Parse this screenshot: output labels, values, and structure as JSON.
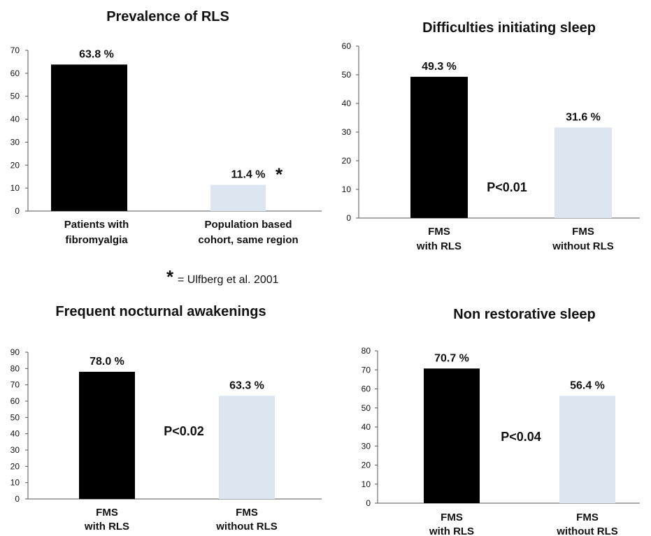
{
  "chart_data": [
    {
      "type": "bar",
      "title": "Prevalence of RLS",
      "categories": [
        [
          "Patients with",
          "fibromyalgia"
        ],
        [
          "Population based",
          "cohort, same region"
        ]
      ],
      "values": [
        63.8,
        11.4
      ],
      "value_labels": [
        "63.8 %",
        "11.4 %"
      ],
      "value_marks": [
        "",
        "*"
      ],
      "colors": [
        "#000000",
        "#dce6f1"
      ],
      "ylim": [
        0,
        70
      ],
      "yticks": [
        0,
        10,
        20,
        30,
        40,
        50,
        60,
        70
      ],
      "annotation": "",
      "grid": false
    },
    {
      "type": "bar",
      "title": "Difficulties initiating sleep",
      "categories": [
        [
          "FMS",
          "with RLS"
        ],
        [
          "FMS",
          "without RLS"
        ]
      ],
      "values": [
        49.3,
        31.6
      ],
      "value_labels": [
        "49.3 %",
        "31.6 %"
      ],
      "value_marks": [
        "",
        ""
      ],
      "colors": [
        "#000000",
        "#dce6f1"
      ],
      "ylim": [
        0,
        60
      ],
      "yticks": [
        0,
        10,
        20,
        30,
        40,
        50,
        60
      ],
      "annotation": "P<0.01",
      "grid": false
    },
    {
      "type": "bar",
      "title": "Frequent nocturnal awakenings",
      "categories": [
        [
          "FMS",
          "with RLS"
        ],
        [
          "FMS",
          "without RLS"
        ]
      ],
      "values": [
        78.0,
        63.3
      ],
      "value_labels": [
        "78.0 %",
        "63.3 %"
      ],
      "value_marks": [
        "",
        ""
      ],
      "colors": [
        "#000000",
        "#dce6f1"
      ],
      "ylim": [
        0,
        90
      ],
      "yticks": [
        0,
        10,
        20,
        30,
        40,
        50,
        60,
        70,
        80,
        90
      ],
      "annotation": "P<0.02",
      "grid": false
    },
    {
      "type": "bar",
      "title": "Non restorative sleep",
      "categories": [
        [
          "FMS",
          "with RLS"
        ],
        [
          "FMS",
          "without RLS"
        ]
      ],
      "values": [
        70.7,
        56.4
      ],
      "value_labels": [
        "70.7 %",
        "56.4 %"
      ],
      "value_marks": [
        "",
        ""
      ],
      "colors": [
        "#000000",
        "#dce6f1"
      ],
      "ylim": [
        0,
        80
      ],
      "yticks": [
        0,
        10,
        20,
        30,
        40,
        50,
        60,
        70,
        80
      ],
      "annotation": "P<0.04",
      "grid": false
    }
  ],
  "reference_note": {
    "mark": "*",
    "text": "= Ulfberg et al. 2001"
  }
}
